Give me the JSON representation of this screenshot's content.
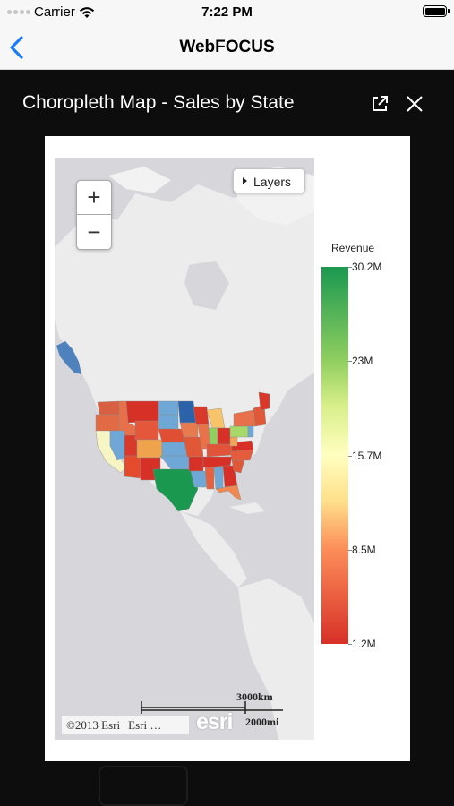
{
  "status_bar": {
    "carrier": "Carrier",
    "time": "7:22 PM"
  },
  "nav": {
    "title": "WebFOCUS",
    "back_icon": "chevron-left-icon",
    "accent": "#1a7cf5"
  },
  "modal": {
    "title": "Choropleth Map - Sales by State",
    "expand_icon": "external-link-icon",
    "close_icon": "close-icon"
  },
  "map": {
    "zoom_in_label": "+",
    "zoom_out_label": "−",
    "layers_label": "Layers",
    "scale_km": "3000km",
    "scale_mi": "2000mi",
    "attribution": "©2013 Esri | Esri …",
    "logo_text": "esri"
  },
  "chart_data": {
    "type": "choropleth",
    "legend_title": "Revenue",
    "legend_labels": [
      "30.2M",
      "23M",
      "15.7M",
      "8.5M",
      "1.2M"
    ],
    "range": [
      1.2,
      30.2
    ],
    "colors": [
      "#1a9850",
      "#91cf60",
      "#ffffbf",
      "#fc8d59",
      "#d73027"
    ]
  }
}
